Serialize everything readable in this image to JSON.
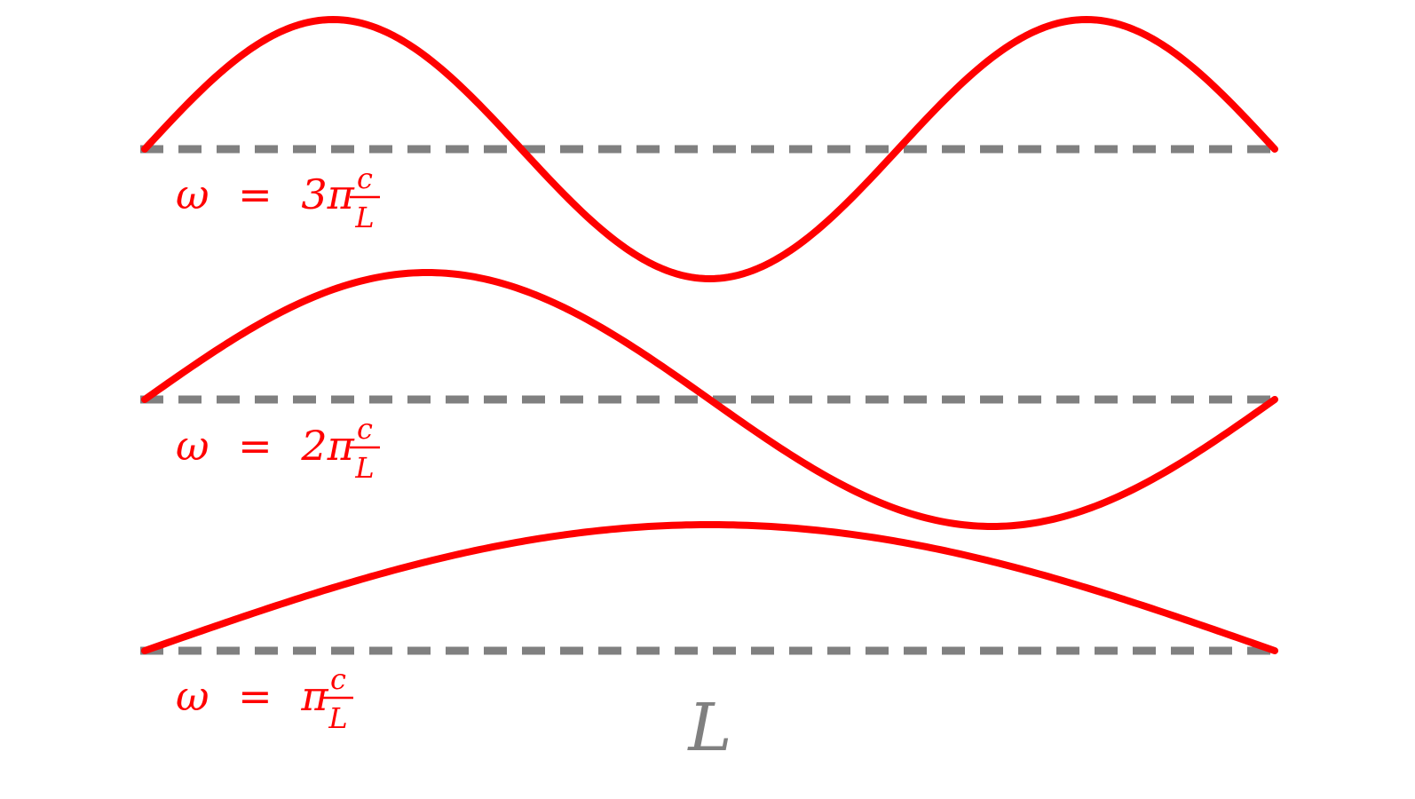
{
  "colors": {
    "wave": "#ff0000",
    "baseline": "#808080",
    "length_label": "#808080"
  },
  "modes": [
    {
      "id": "mode-3",
      "harmonic": 3,
      "label": {
        "omega": "ω",
        "equals": "=",
        "coef": "3π",
        "num": "c",
        "den": "L"
      }
    },
    {
      "id": "mode-2",
      "harmonic": 2,
      "label": {
        "omega": "ω",
        "equals": "=",
        "coef": "2π",
        "num": "c",
        "den": "L"
      }
    },
    {
      "id": "mode-1",
      "harmonic": 1,
      "label": {
        "omega": "ω",
        "equals": "=",
        "coef": "π",
        "num": "c",
        "den": "L"
      }
    }
  ],
  "length_label": "L"
}
